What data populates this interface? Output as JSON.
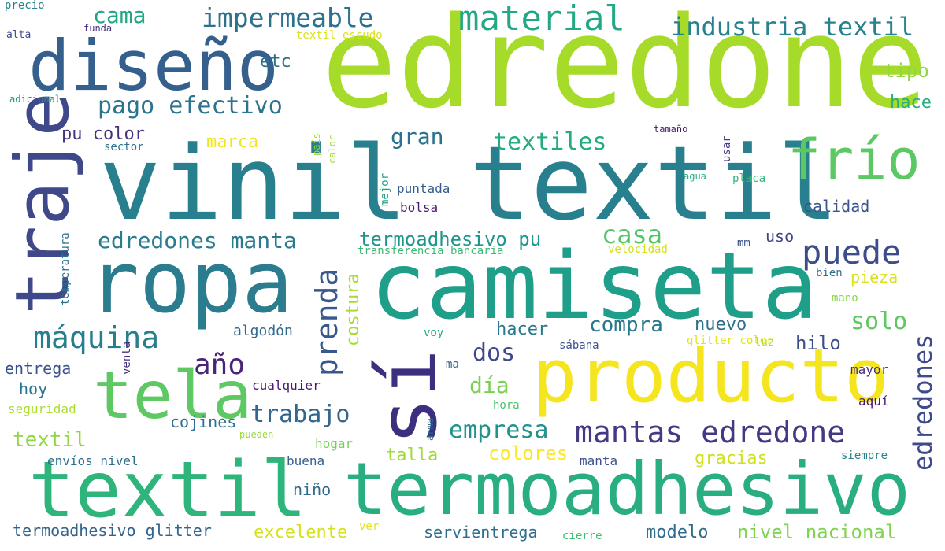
{
  "word_cloud": {
    "words": [
      {
        "text": "edredone",
        "color": "#a6db2a"
      },
      {
        "text": "vinil textil",
        "color": "#287f8e"
      },
      {
        "text": "ropa",
        "color": "#2a7c8e"
      },
      {
        "text": "camiseta",
        "color": "#1f9e89"
      },
      {
        "text": "producto",
        "color": "#f5e51e"
      },
      {
        "text": "textil",
        "color": "#2fb47c"
      },
      {
        "text": "termoadhesivo",
        "color": "#29ae80"
      },
      {
        "text": "diseño",
        "color": "#35608d"
      },
      {
        "text": "traje",
        "color": "#3f4889"
      },
      {
        "text": "tela",
        "color": "#5ec962"
      },
      {
        "text": "sí",
        "color": "#3b2f80"
      },
      {
        "text": "frío",
        "color": "#5cc863"
      },
      {
        "text": "material",
        "color": "#22a884"
      },
      {
        "text": "industria textil",
        "color": "#26828e"
      },
      {
        "text": "impermeable",
        "color": "#2c728e"
      },
      {
        "text": "cama",
        "color": "#22a785"
      },
      {
        "text": "etc",
        "color": "#2d708e"
      },
      {
        "text": "pago efectivo",
        "color": "#2c738e"
      },
      {
        "text": "pu color",
        "color": "#46327e"
      },
      {
        "text": "marca",
        "color": "#f1e51d"
      },
      {
        "text": "gran",
        "color": "#2c728e"
      },
      {
        "text": "textiles",
        "color": "#25ab82"
      },
      {
        "text": "tipo",
        "color": "#8fd744"
      },
      {
        "text": "hace",
        "color": "#29af7f"
      },
      {
        "text": "prenda",
        "color": "#38598c"
      },
      {
        "text": "puede",
        "color": "#3e4c8a"
      },
      {
        "text": "edredones",
        "color": "#3e4a89"
      },
      {
        "text": "edredones manta",
        "color": "#297b8e"
      },
      {
        "text": "termoadhesivo pu",
        "color": "#1f968b"
      },
      {
        "text": "casa",
        "color": "#54c568"
      },
      {
        "text": "uso",
        "color": "#414487"
      },
      {
        "text": "calidad",
        "color": "#3a548c"
      },
      {
        "text": "máquina",
        "color": "#277f8e"
      },
      {
        "text": "año",
        "color": "#482576"
      },
      {
        "text": "costura",
        "color": "#a8db34"
      },
      {
        "text": "dos",
        "color": "#3e4989"
      },
      {
        "text": "día",
        "color": "#7ad151"
      },
      {
        "text": "hacer",
        "color": "#2a788e"
      },
      {
        "text": "compra",
        "color": "#29798e"
      },
      {
        "text": "nuevo",
        "color": "#2d718e"
      },
      {
        "text": "solo",
        "color": "#5ec962"
      },
      {
        "text": "hilo",
        "color": "#3d4e8a"
      },
      {
        "text": "pieza",
        "color": "#d8e219"
      },
      {
        "text": "algodón",
        "color": "#31688e"
      },
      {
        "text": "voy",
        "color": "#20a386"
      },
      {
        "text": "entrega",
        "color": "#3b528b"
      },
      {
        "text": "hoy",
        "color": "#2b758e"
      },
      {
        "text": "seguridad",
        "color": "#addc30"
      },
      {
        "text": "textil",
        "color": "#90d743"
      },
      {
        "text": "trabajo",
        "color": "#31668e"
      },
      {
        "text": "empresa",
        "color": "#21918c"
      },
      {
        "text": "mantas edredone",
        "color": "#443983"
      },
      {
        "text": "talla",
        "color": "#a0da39"
      },
      {
        "text": "colores",
        "color": "#fde725"
      },
      {
        "text": "gracias",
        "color": "#cde11d"
      },
      {
        "text": "cojines",
        "color": "#2e6e8e"
      },
      {
        "text": "hogar",
        "color": "#74d055"
      },
      {
        "text": "envíos nivel",
        "color": "#2d708e"
      },
      {
        "text": "buena",
        "color": "#355f8d"
      },
      {
        "text": "niño",
        "color": "#31688e"
      },
      {
        "text": "manta",
        "color": "#3b528b"
      },
      {
        "text": "siempre",
        "color": "#26828e"
      },
      {
        "text": "termoadhesivo glitter",
        "color": "#33638d"
      },
      {
        "text": "excelente",
        "color": "#d5e21a"
      },
      {
        "text": "ver",
        "color": "#e5e419"
      },
      {
        "text": "servientrega",
        "color": "#2e6e8e"
      },
      {
        "text": "cierre",
        "color": "#3dbc74"
      },
      {
        "text": "modelo",
        "color": "#2f6c8e"
      },
      {
        "text": "nivel nacional",
        "color": "#7fd34e"
      },
      {
        "text": "precio",
        "color": "#26828e"
      },
      {
        "text": "funda",
        "color": "#46307e"
      },
      {
        "text": "textil escudo",
        "color": "#d8e219"
      },
      {
        "text": "alta",
        "color": "#3e4a89"
      },
      {
        "text": "adicional",
        "color": "#1f9a8a"
      },
      {
        "text": "sector",
        "color": "#2e6f8e"
      },
      {
        "text": "país",
        "color": "#a2da37"
      },
      {
        "text": "calor",
        "color": "#a2da37"
      },
      {
        "text": "mejor",
        "color": "#20a486"
      },
      {
        "text": "usar",
        "color": "#433e85"
      },
      {
        "text": "puntada",
        "color": "#365c8d"
      },
      {
        "text": "bolsa",
        "color": "#481c6e"
      },
      {
        "text": "tamaño",
        "color": "#481b6d"
      },
      {
        "text": "agua",
        "color": "#27ad81"
      },
      {
        "text": "placa",
        "color": "#35b779"
      },
      {
        "text": "temperatura",
        "color": "#2c728e"
      },
      {
        "text": "transferencia bancaria",
        "color": "#3aba76"
      },
      {
        "text": "velocidad",
        "color": "#d2e21b"
      },
      {
        "text": "mm",
        "color": "#3b528b"
      },
      {
        "text": "bien",
        "color": "#2d708e"
      },
      {
        "text": "mano",
        "color": "#8bd646"
      },
      {
        "text": "glitter color",
        "color": "#e2e418"
      },
      {
        "text": "luz",
        "color": "#b5de2b"
      },
      {
        "text": "sábana",
        "color": "#3b528b"
      },
      {
        "text": "ma",
        "color": "#31688e"
      },
      {
        "text": "mayor",
        "color": "#472c7a"
      },
      {
        "text": "aquí",
        "color": "#48186a"
      },
      {
        "text": "cualquier",
        "color": "#481a6c"
      },
      {
        "text": "hora",
        "color": "#4ac16d"
      },
      {
        "text": "pueden",
        "color": "#9bd93c"
      },
      {
        "text": "arma",
        "color": "#31688e"
      },
      {
        "text": "venta",
        "color": "#46327e"
      }
    ]
  }
}
